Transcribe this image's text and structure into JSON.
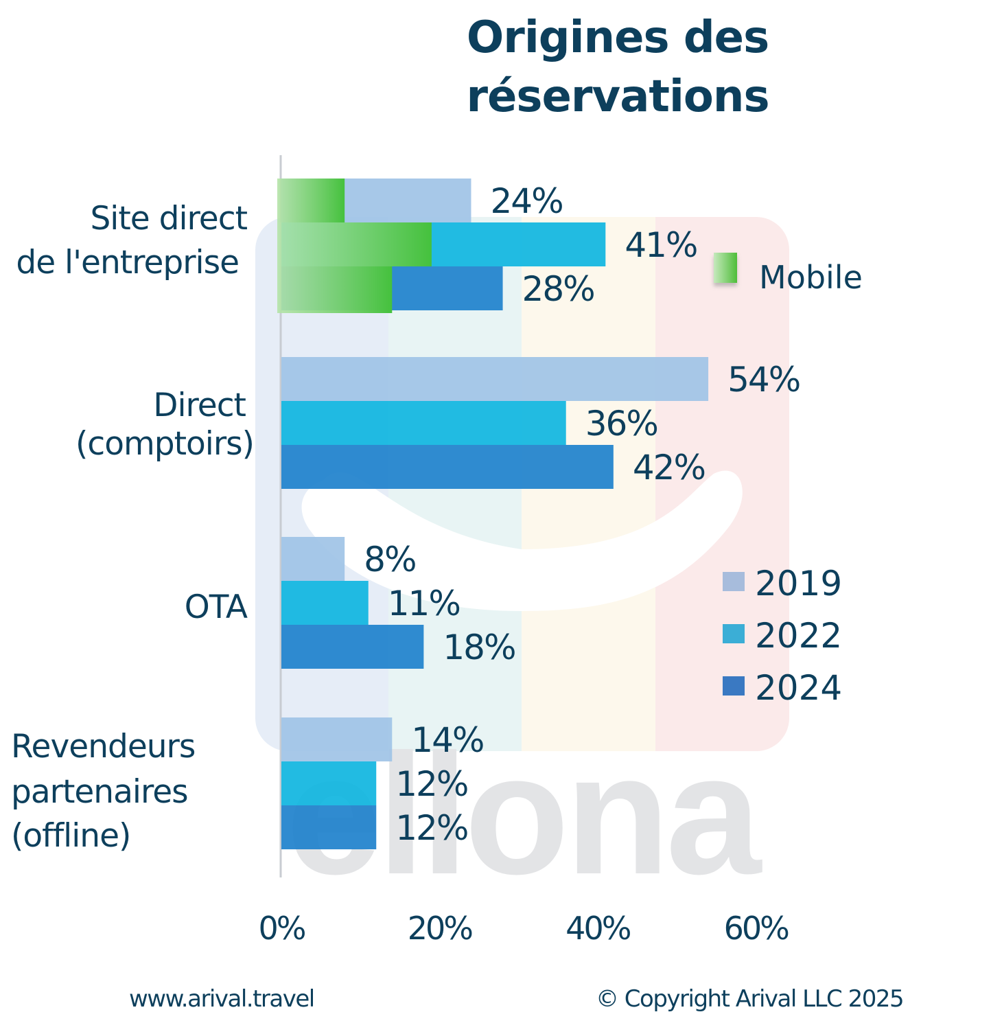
{
  "title_lines": [
    "Origines des",
    "réservations"
  ],
  "footer": {
    "website": "www.arival.travel",
    "copyright": "© Copyright Arival LLC 2025"
  },
  "watermark": {
    "text": "ellona",
    "band_colors": [
      "#e6edf7",
      "#e8f4f4",
      "#fdf8ec",
      "#fbeaea"
    ],
    "text_color": "#e3e4e6"
  },
  "colors": {
    "text": "#0d3f5c",
    "axis": "#c8ccd2",
    "mobile_start": "#b5e4a9",
    "mobile_end": "#45c13d"
  },
  "chart_data": {
    "type": "bar",
    "orientation": "horizontal",
    "title": "Origines des réservations",
    "xlabel": "",
    "ylabel": "",
    "xlim": [
      0,
      60
    ],
    "x_ticks": [
      0,
      20,
      40,
      60
    ],
    "x_tick_labels": [
      "0%",
      "20%",
      "40%",
      "60%"
    ],
    "grid": false,
    "categories": [
      [
        "Site direct",
        "de l'entreprise"
      ],
      [
        "Direct",
        "(comptoirs)"
      ],
      [
        "OTA"
      ],
      [
        "Revendeurs",
        "partenaires",
        "(offline)"
      ]
    ],
    "series": [
      {
        "name": "2019",
        "color": "#a7bcdc",
        "bar_color": "#9fc3e6",
        "values": [
          24,
          54,
          8,
          14
        ],
        "labels": [
          "24%",
          "54%",
          "8%",
          "14%"
        ]
      },
      {
        "name": "2022",
        "color": "#3baed6",
        "bar_color": "#0fb5e0",
        "values": [
          41,
          36,
          11,
          12
        ],
        "labels": [
          "41%",
          "36%",
          "11%",
          "12%"
        ]
      },
      {
        "name": "2024",
        "color": "#3a79c2",
        "bar_color": "#1e81cc",
        "values": [
          28,
          42,
          18,
          12
        ],
        "labels": [
          "28%",
          "42%",
          "18%",
          "12%"
        ]
      }
    ],
    "mobile_overlay": {
      "name": "Mobile",
      "category": "Site direct de l'entreprise",
      "values": {
        "2019": 8,
        "2022": 19,
        "2024": 14
      }
    },
    "legend": {
      "placement": "right",
      "entries": [
        "2019",
        "2022",
        "2024"
      ],
      "mobile_label": "Mobile"
    }
  }
}
